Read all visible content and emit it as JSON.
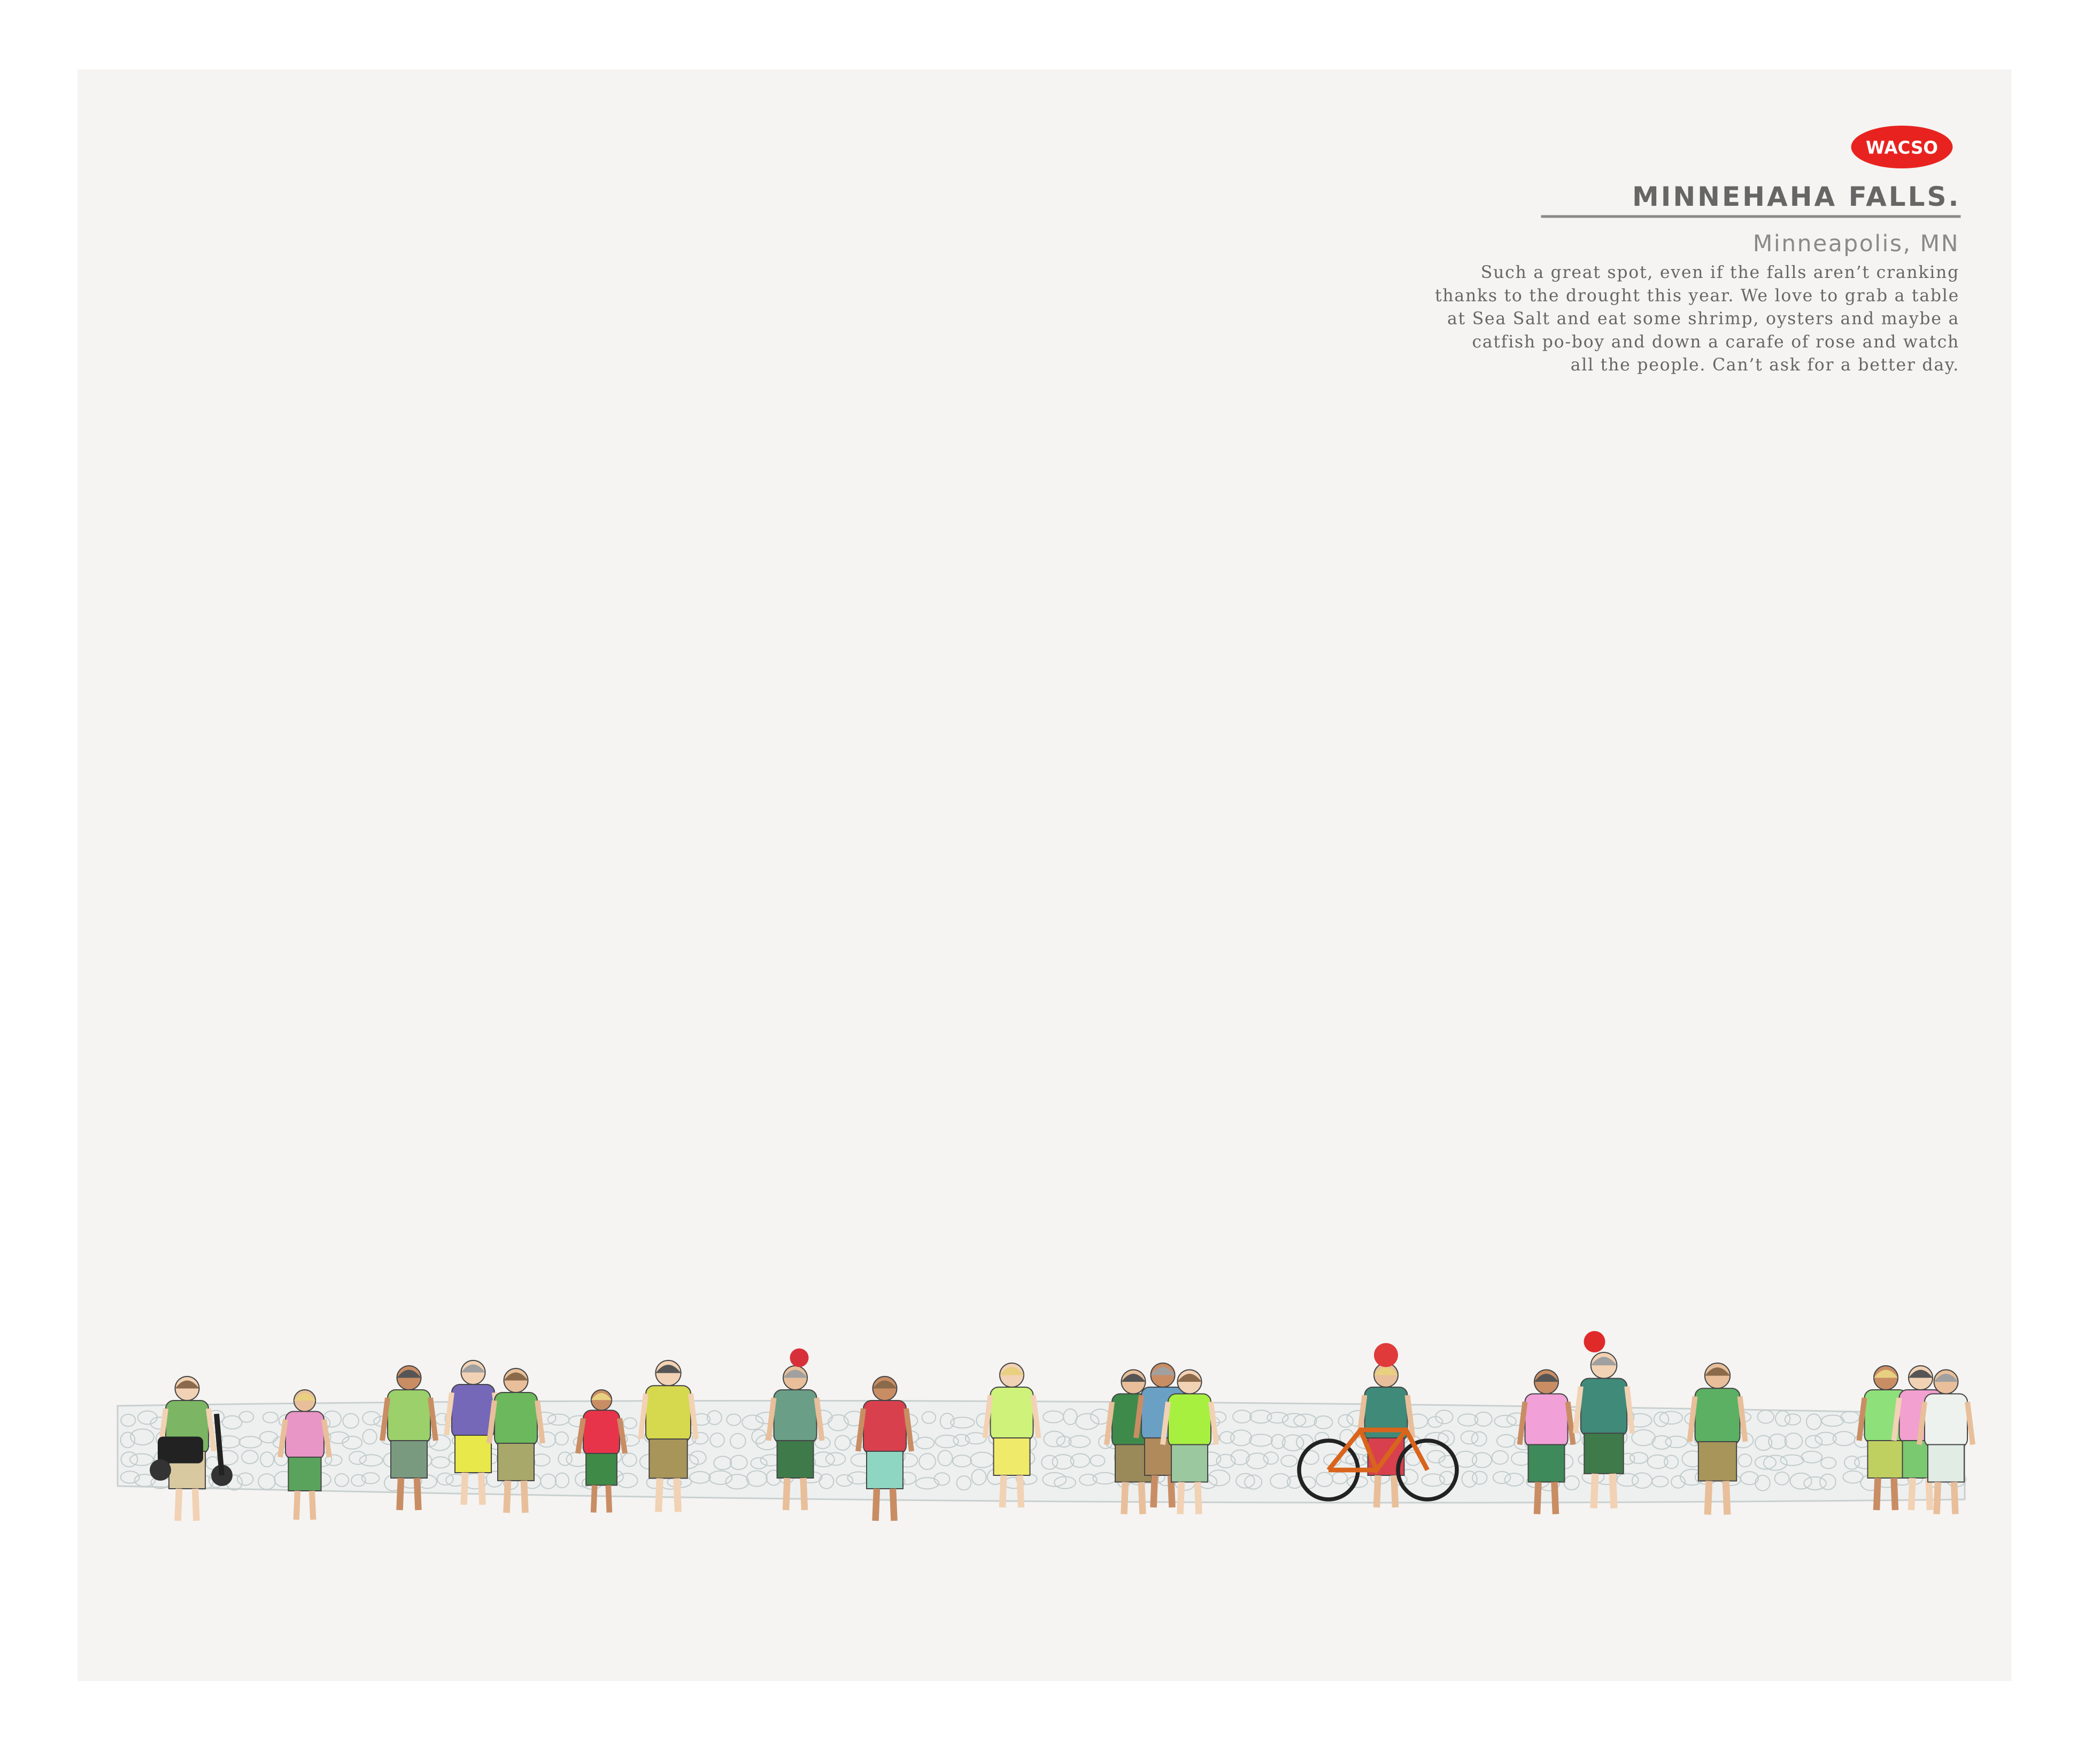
{
  "logo": "WACSO",
  "title": "MINNEHAHA FALLS.",
  "location": "Minneapolis, MN",
  "description": [
    "Such a great spot, even if the falls aren’t cranking",
    "thanks to the drought this year. We love to grab a table",
    "at Sea Salt and eat some shrimp, oysters and maybe a",
    "catfish po-boy and down a carafe of rose and watch",
    "all the people. Can’t ask for a better day."
  ]
}
